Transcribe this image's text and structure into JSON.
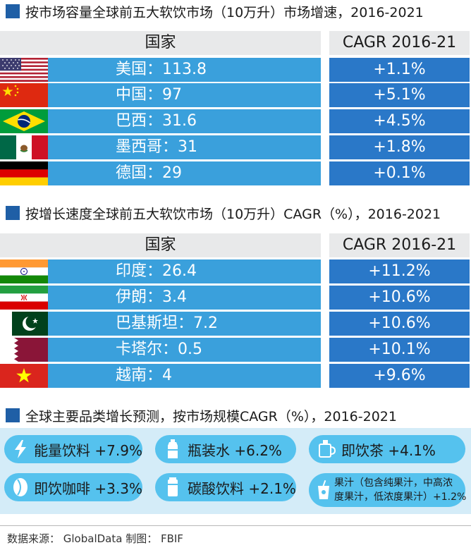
{
  "section1": {
    "title": "按市场容量全球前五大软饮市场（10万升）市场增速，2016-2021",
    "col_country": "国家",
    "col_cagr": "CAGR  2016-21",
    "rows": [
      {
        "flag": "usa-flag",
        "country": "美国：113.8",
        "cagr": "+1.1%"
      },
      {
        "flag": "china-flag",
        "country": "中国：97",
        "cagr": "+5.1%"
      },
      {
        "flag": "brazil-flag",
        "country": "巴西：31.6",
        "cagr": "+4.5%"
      },
      {
        "flag": "mexico-flag",
        "country": "墨西哥：31",
        "cagr": "+1.8%"
      },
      {
        "flag": "germany-flag",
        "country": "德国：29",
        "cagr": "+0.1%"
      }
    ]
  },
  "section2": {
    "title": "按增长速度全球前五大软饮市场（10万升）CAGR（%），2016-2021",
    "col_country": "国家",
    "col_cagr": "CAGR  2016-21",
    "rows": [
      {
        "flag": "india-flag",
        "country": "印度：26.4",
        "cagr": "+11.2%"
      },
      {
        "flag": "iran-flag",
        "country": "伊朗：3.4",
        "cagr": "+10.6%"
      },
      {
        "flag": "pakistan-flag",
        "country": "巴基斯坦：7.2",
        "cagr": "+10.6%"
      },
      {
        "flag": "qatar-flag",
        "country": "卡塔尔：0.5",
        "cagr": "+10.1%"
      },
      {
        "flag": "vietnam-flag",
        "country": "越南：4",
        "cagr": "+9.6%"
      }
    ]
  },
  "section3": {
    "title": "全球主要品类增长预测，按市场规模CAGR（%），2016-2021",
    "categories": [
      {
        "icon": "lightning-icon",
        "label": "能量饮料 +7.9%"
      },
      {
        "icon": "water-bottle-icon",
        "label": "瓶装水 +6.2%"
      },
      {
        "icon": "tea-cup-icon",
        "label": "即饮茶 +4.1%"
      },
      {
        "icon": "coffee-bean-icon",
        "label": "即饮咖啡 +3.3%"
      },
      {
        "icon": "soda-can-icon",
        "label": "碳酸饮料 +2.1%"
      },
      {
        "icon": "juice-cup-icon",
        "label_line1": "果汁（包含纯果汁，中高浓",
        "label_line2": "度果汁，低浓度果汁）+1.2%"
      }
    ]
  },
  "footer": "数据来源： GlobalData     制图： FBIF",
  "colors": {
    "title_square": "#1f5fa6",
    "header_bg": "#e8e9ea",
    "country_cell": "#3aa0dc",
    "cagr_cell": "#2a78c8",
    "panel_bg": "#d4ecf8",
    "pill_bg": "#55c2ee"
  }
}
